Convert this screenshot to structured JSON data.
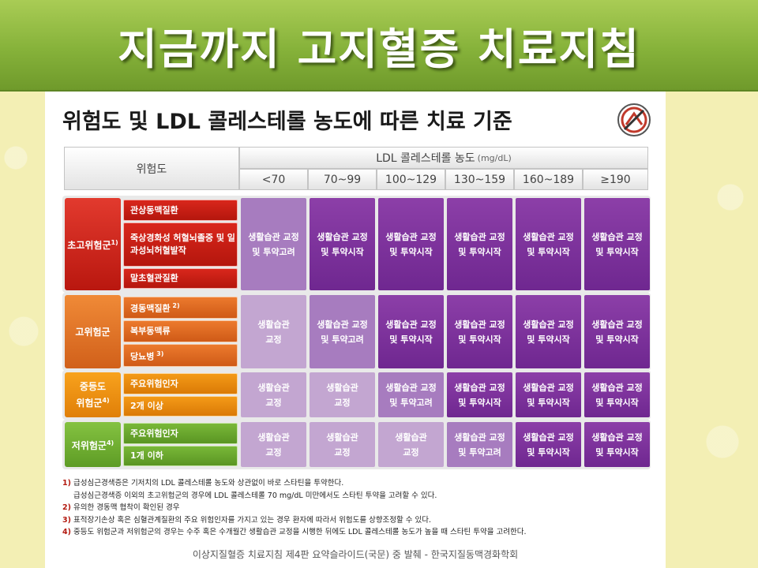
{
  "slide_title": "지금까지 고지혈증 치료지침",
  "doc_title": "위험도 및 LDL 콜레스테롤 농도에 따른 치료 기준",
  "header": {
    "risk_label": "위험도",
    "ldl_label": "LDL 콜레스테롤 농도",
    "ldl_unit": "(mg/dL)",
    "columns": [
      "<70",
      "70~99",
      "100~129",
      "130~159",
      "160~189",
      "≥190"
    ]
  },
  "groups": [
    {
      "name": "초고위험군",
      "sup": "1)",
      "items": [
        {
          "label": "관상동맥질환",
          "sup": ""
        },
        {
          "label": "죽상경화성 허혈뇌졸중 및 일과성뇌허혈발작",
          "sup": ""
        },
        {
          "label": "말초혈관질환",
          "sup": ""
        }
      ],
      "cells": [
        [
          "생활습관 교정",
          "및 투약고려"
        ],
        [
          "생활습관 교정",
          "및 투약시작"
        ],
        [
          "생활습관 교정",
          "및 투약시작"
        ],
        [
          "생활습관 교정",
          "및 투약시작"
        ],
        [
          "생활습관 교정",
          "및 투약시작"
        ],
        [
          "생활습관 교정",
          "및 투약시작"
        ]
      ]
    },
    {
      "name": "고위험군",
      "sup": "",
      "items": [
        {
          "label": "경동맥질환",
          "sup": "2)"
        },
        {
          "label": "복부동맥류",
          "sup": ""
        },
        {
          "label": "당뇨병",
          "sup": "3)"
        }
      ],
      "cells": [
        [
          "생활습관",
          "교정"
        ],
        [
          "생활습관 교정",
          "및 투약고려"
        ],
        [
          "생활습관 교정",
          "및 투약시작"
        ],
        [
          "생활습관 교정",
          "및 투약시작"
        ],
        [
          "생활습관 교정",
          "및 투약시작"
        ],
        [
          "생활습관 교정",
          "및 투약시작"
        ]
      ]
    },
    {
      "name_line1": "중등도",
      "name_line2": "위험군",
      "sup": "4)",
      "items": [
        {
          "label": "주요위험인자",
          "sup": ""
        },
        {
          "label": "2개 이상",
          "sup": ""
        }
      ],
      "cells": [
        [
          "생활습관",
          "교정"
        ],
        [
          "생활습관",
          "교정"
        ],
        [
          "생활습관 교정",
          "및 투약고려"
        ],
        [
          "생활습관 교정",
          "및 투약시작"
        ],
        [
          "생활습관 교정",
          "및 투약시작"
        ],
        [
          "생활습관 교정",
          "및 투약시작"
        ]
      ]
    },
    {
      "name": "저위험군",
      "sup": "4)",
      "items": [
        {
          "label": "주요위험인자",
          "sup": ""
        },
        {
          "label": "1개 이하",
          "sup": ""
        }
      ],
      "cells": [
        [
          "생활습관",
          "교정"
        ],
        [
          "생활습관",
          "교정"
        ],
        [
          "생활습관",
          "교정"
        ],
        [
          "생활습관 교정",
          "및 투약고려"
        ],
        [
          "생활습관 교정",
          "및 투약시작"
        ],
        [
          "생활습관 교정",
          "및 투약시작"
        ]
      ]
    }
  ],
  "notes": [
    {
      "num": "1)",
      "text": "급성심근경색증은 기저치의 LDL 콜레스테롤 농도와 상관없이 바로 스타틴을 투약한다."
    },
    {
      "num": "",
      "text": "급성심근경색증 이외의 초고위험군의 경우에 LDL 콜레스테롤 70 mg/dL 미만에서도 스타틴 투약을 고려할 수 있다."
    },
    {
      "num": "2)",
      "text": "유의한 경동맥 협착이 확인된 경우"
    },
    {
      "num": "3)",
      "text": "표적장기손상 혹은 심혈관계질환의 주요 위험인자를 가지고 있는 경우 환자에 따라서 위험도를 상향조정할 수 있다."
    },
    {
      "num": "4)",
      "text": "중등도 위험군과 저위험군의 경우는 수주 혹은 수개월간 생활습관 교정을 시행한 뒤에도 LDL 콜레스테롤 농도가 높을 때 스타틴 투약을 고려한다."
    }
  ],
  "source": "이상지질혈증 치료지침 제4판 요약슬라이드(국문) 중 발췌 - 한국지질동맥경화학회",
  "colors": {
    "title_bar": "#86b23a",
    "very_high": "#c8201a",
    "high": "#e06f26",
    "moderate": "#f0920f",
    "low": "#6ea830",
    "lifestyle": "#c3a6d1",
    "consider_drug": "#a77cbf",
    "start_drug": "#7b2f9a"
  }
}
